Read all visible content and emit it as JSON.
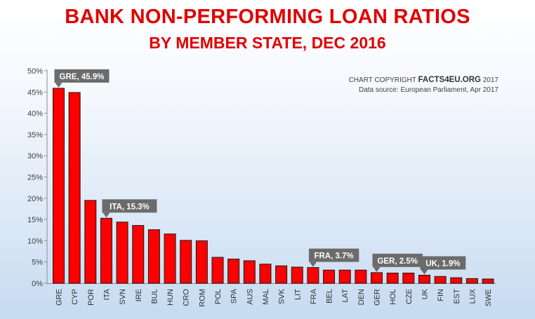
{
  "chart_data": {
    "type": "bar",
    "title": "BANK NON-PERFORMING LOAN RATIOS",
    "subtitle": "BY MEMBER STATE, DEC 2016",
    "credit": {
      "prefix": "CHART COPYRIGHT",
      "brand": "FACTS4EU.ORG",
      "year": "2017",
      "source": "Data source: European Parliament, Apr 2017"
    },
    "categories": [
      "GRE",
      "CYP",
      "POR",
      "ITA",
      "SVN",
      "IRE",
      "BUL",
      "HUN",
      "CRO",
      "ROM",
      "POL",
      "SPA",
      "AUS",
      "MAL",
      "SVK",
      "LIT",
      "FRA",
      "BEL",
      "LAT",
      "DEN",
      "GER",
      "HOL",
      "CZE",
      "UK",
      "FIN",
      "EST",
      "LUX",
      "SWE"
    ],
    "values": [
      45.9,
      44.9,
      19.5,
      15.3,
      14.4,
      13.6,
      12.6,
      11.6,
      10.1,
      10.0,
      6.1,
      5.7,
      5.3,
      4.5,
      4.1,
      3.8,
      3.7,
      3.1,
      3.1,
      3.1,
      2.5,
      2.4,
      2.4,
      1.9,
      1.6,
      1.3,
      1.1,
      1.0
    ],
    "ylim": [
      0,
      50
    ],
    "yticks": [
      "0%",
      "5%",
      "10%",
      "15%",
      "20%",
      "25%",
      "30%",
      "35%",
      "40%",
      "45%",
      "50%"
    ],
    "grid": false,
    "bar_color": "#ff0000",
    "callouts": [
      {
        "category": "GRE",
        "text": "GRE, 45.9%"
      },
      {
        "category": "ITA",
        "text": "ITA, 15.3%"
      },
      {
        "category": "FRA",
        "text": "FRA, 3.7%"
      },
      {
        "category": "GER",
        "text": "GER, 2.5%"
      },
      {
        "category": "UK",
        "text": "UK, 1.9%"
      }
    ]
  }
}
